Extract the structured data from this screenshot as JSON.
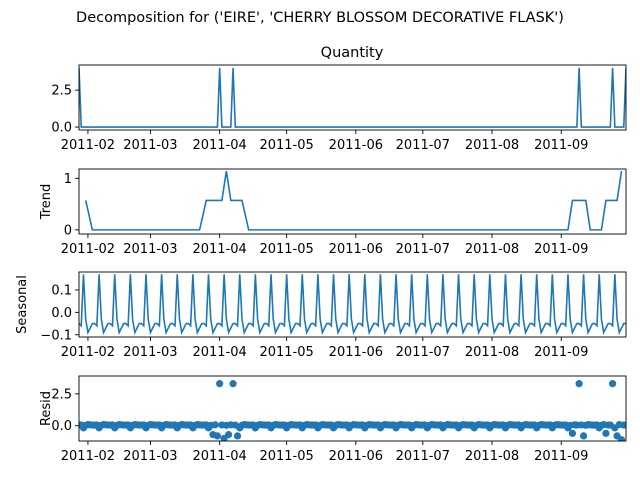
{
  "figure": {
    "title": "Decomposition for ('EIRE', 'CHERRY BLOSSOM  DECORATIVE FLASK')",
    "line_color": "#1f77b4",
    "x_ticks": [
      "2011-02",
      "2011-03",
      "2011-04",
      "2011-05",
      "2011-06",
      "2011-07",
      "2011-08",
      "2011-09"
    ]
  },
  "chart_data": [
    {
      "type": "line",
      "title": "Quantity",
      "ylabel": "",
      "x_range": [
        "2011-01-28",
        "2011-09-30"
      ],
      "ylim": [
        -0.2,
        4.2
      ],
      "yticks": [
        "0.0",
        "2.5"
      ],
      "ytick_values": [
        0,
        2.5
      ],
      "spikes": [
        {
          "x": "2011-04-01",
          "y": 4
        },
        {
          "x": "2011-04-07",
          "y": 4
        },
        {
          "x": "2011-09-09",
          "y": 4
        },
        {
          "x": "2011-09-24",
          "y": 4
        },
        {
          "x": "2011-09-30",
          "y": 4
        }
      ],
      "first_value": {
        "x": "2011-01-28",
        "y": 4
      }
    },
    {
      "type": "line",
      "title": "",
      "ylabel": "Trend",
      "ylim": [
        -0.08,
        1.18
      ],
      "yticks": [
        "0",
        "1"
      ],
      "ytick_values": [
        0,
        1
      ],
      "points": [
        {
          "x": "2011-01-31",
          "y": 0.57
        },
        {
          "x": "2011-02-03",
          "y": 0
        },
        {
          "x": "2011-03-23",
          "y": 0
        },
        {
          "x": "2011-03-26",
          "y": 0.57
        },
        {
          "x": "2011-04-02",
          "y": 0.57
        },
        {
          "x": "2011-04-04",
          "y": 1.14
        },
        {
          "x": "2011-04-06",
          "y": 0.57
        },
        {
          "x": "2011-04-11",
          "y": 0.57
        },
        {
          "x": "2011-04-14",
          "y": 0
        },
        {
          "x": "2011-09-04",
          "y": 0
        },
        {
          "x": "2011-09-06",
          "y": 0.57
        },
        {
          "x": "2011-09-12",
          "y": 0.57
        },
        {
          "x": "2011-09-14",
          "y": 0
        },
        {
          "x": "2011-09-19",
          "y": 0
        },
        {
          "x": "2011-09-21",
          "y": 0.57
        },
        {
          "x": "2011-09-26",
          "y": 0.57
        },
        {
          "x": "2011-09-28",
          "y": 1.14
        }
      ]
    },
    {
      "type": "line",
      "title": "",
      "ylabel": "Seasonal",
      "ylim": [
        -0.11,
        0.18
      ],
      "yticks": [
        "−0.1",
        "0.0",
        "0.1"
      ],
      "ytick_values": [
        -0.1,
        0,
        0.1
      ],
      "period_days": 7,
      "pattern": [
        -0.05,
        -0.06,
        0.17,
        -0.03,
        -0.09,
        -0.07,
        -0.05
      ],
      "start": "2011-01-28",
      "end": "2011-09-30"
    },
    {
      "type": "scatter",
      "title": "",
      "ylabel": "Resid",
      "ylim": [
        -1.2,
        3.9
      ],
      "yticks": [
        "0.0",
        "2.5"
      ],
      "ytick_values": [
        0,
        2.5
      ],
      "zero_line": true,
      "outliers": [
        {
          "x": "2011-04-01",
          "y": 3.3
        },
        {
          "x": "2011-04-07",
          "y": 3.3
        },
        {
          "x": "2011-09-09",
          "y": 3.3
        },
        {
          "x": "2011-09-24",
          "y": 3.3
        }
      ],
      "low_points": [
        {
          "x": "2011-03-29",
          "y": -0.7
        },
        {
          "x": "2011-03-31",
          "y": -0.8
        },
        {
          "x": "2011-04-03",
          "y": -1.0
        },
        {
          "x": "2011-04-05",
          "y": -0.7
        },
        {
          "x": "2011-04-09",
          "y": -0.8
        },
        {
          "x": "2011-09-06",
          "y": -0.6
        },
        {
          "x": "2011-09-11",
          "y": -0.8
        },
        {
          "x": "2011-09-21",
          "y": -0.6
        },
        {
          "x": "2011-09-26",
          "y": -0.8
        },
        {
          "x": "2011-09-28",
          "y": -1.1
        }
      ],
      "base_pattern": [
        0.05,
        0.06,
        -0.17,
        0.03,
        0.09,
        0.07,
        0.05
      ]
    }
  ]
}
